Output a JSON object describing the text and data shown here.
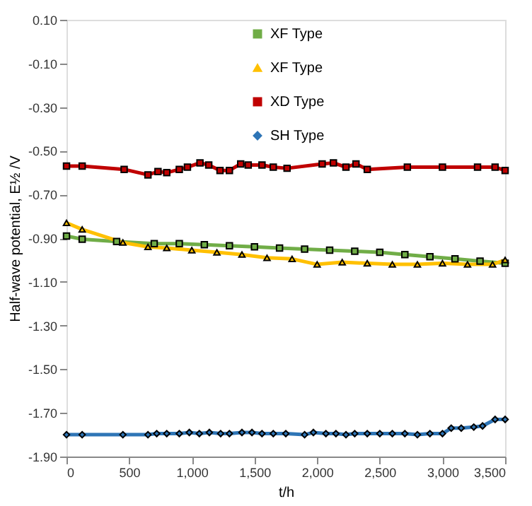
{
  "chart_data": {
    "type": "line",
    "xlabel": "t/h",
    "ylabel": "Half-wave potential, E½ /V",
    "xlim": [
      0,
      3500
    ],
    "xticks": [
      {
        "value": 0,
        "label": "0"
      },
      {
        "value": 500,
        "label": "500"
      },
      {
        "value": 1000,
        "label": "1,000"
      },
      {
        "value": 1500,
        "label": "1,500"
      },
      {
        "value": 2000,
        "label": "2,000"
      },
      {
        "value": 2500,
        "label": "2,500"
      },
      {
        "value": 3000,
        "label": "3,000"
      },
      {
        "value": 3500,
        "label": "3,500"
      }
    ],
    "ylim": [
      -1.9,
      0.1
    ],
    "yticks": [
      {
        "value": 0.1,
        "label": "0.10"
      },
      {
        "value": -0.1,
        "label": "-0.10"
      },
      {
        "value": -0.3,
        "label": "-0.30"
      },
      {
        "value": -0.5,
        "label": "-0.50"
      },
      {
        "value": -0.7,
        "label": "-0.70"
      },
      {
        "value": -0.9,
        "label": "-0.90"
      },
      {
        "value": -1.1,
        "label": "-1.10"
      },
      {
        "value": -1.3,
        "label": "-1.30"
      },
      {
        "value": -1.5,
        "label": "-1.50"
      },
      {
        "value": -1.7,
        "label": "-1.70"
      },
      {
        "value": -1.9,
        "label": "-1.90"
      }
    ],
    "grid": false,
    "legend": "top",
    "line_style": "solid",
    "series": [
      {
        "name": "XF Type",
        "color": "#70ad47",
        "marker": "square",
        "x": [
          0,
          125,
          400,
          700,
          900,
          1100,
          1300,
          1500,
          1700,
          1900,
          2100,
          2300,
          2500,
          2700,
          2900,
          3100,
          3300,
          3500
        ],
        "values": [
          -0.89,
          -0.905,
          -0.915,
          -0.925,
          -0.925,
          -0.93,
          -0.935,
          -0.94,
          -0.945,
          -0.95,
          -0.955,
          -0.96,
          -0.965,
          -0.975,
          -0.985,
          -0.995,
          -1.005,
          -1.015
        ]
      },
      {
        "name": "XF Type",
        "color": "#ffc000",
        "marker": "triangle",
        "x": [
          0,
          125,
          450,
          650,
          800,
          1000,
          1200,
          1400,
          1600,
          1800,
          2000,
          2200,
          2400,
          2600,
          2800,
          3000,
          3200,
          3400,
          3500
        ],
        "values": [
          -0.83,
          -0.86,
          -0.92,
          -0.94,
          -0.945,
          -0.955,
          -0.965,
          -0.975,
          -0.99,
          -0.995,
          -1.02,
          -1.01,
          -1.015,
          -1.02,
          -1.02,
          -1.015,
          -1.02,
          -1.02,
          -1.0
        ]
      },
      {
        "name": "XD Type",
        "color": "#c00000",
        "marker": "square",
        "x": [
          0,
          125,
          460,
          650,
          730,
          800,
          900,
          965,
          1065,
          1135,
          1225,
          1300,
          1390,
          1450,
          1560,
          1650,
          1760,
          2040,
          2130,
          2230,
          2310,
          2400,
          2720,
          3000,
          3280,
          3420,
          3500
        ],
        "values": [
          -0.57,
          -0.57,
          -0.585,
          -0.61,
          -0.595,
          -0.6,
          -0.585,
          -0.575,
          -0.555,
          -0.565,
          -0.59,
          -0.59,
          -0.56,
          -0.565,
          -0.565,
          -0.575,
          -0.58,
          -0.56,
          -0.555,
          -0.575,
          -0.56,
          -0.585,
          -0.575,
          -0.575,
          -0.575,
          -0.575,
          -0.59
        ]
      },
      {
        "name": "SH Type",
        "color": "#2e75b6",
        "marker": "diamond",
        "x": [
          0,
          125,
          450,
          650,
          720,
          800,
          900,
          980,
          1060,
          1140,
          1230,
          1300,
          1400,
          1480,
          1560,
          1650,
          1750,
          1900,
          1970,
          2070,
          2150,
          2230,
          2300,
          2400,
          2500,
          2600,
          2700,
          2800,
          2900,
          3000,
          3070,
          3150,
          3250,
          3320,
          3420,
          3500
        ],
        "values": [
          -1.8,
          -1.8,
          -1.8,
          -1.8,
          -1.795,
          -1.795,
          -1.795,
          -1.79,
          -1.795,
          -1.79,
          -1.795,
          -1.795,
          -1.79,
          -1.79,
          -1.795,
          -1.795,
          -1.795,
          -1.8,
          -1.79,
          -1.795,
          -1.795,
          -1.8,
          -1.795,
          -1.795,
          -1.795,
          -1.795,
          -1.795,
          -1.8,
          -1.795,
          -1.795,
          -1.77,
          -1.77,
          -1.765,
          -1.76,
          -1.73,
          -1.73
        ]
      }
    ]
  }
}
